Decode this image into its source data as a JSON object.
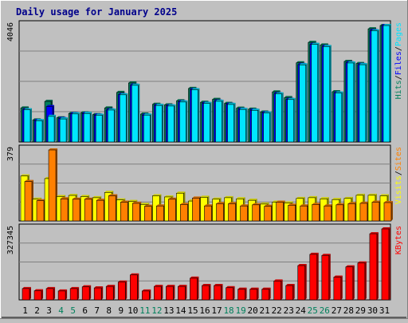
{
  "chart_data": {
    "type": "bar",
    "title": "Daily usage for January 2025",
    "categories": [
      "1",
      "2",
      "3",
      "4",
      "5",
      "6",
      "7",
      "8",
      "9",
      "10",
      "11",
      "12",
      "13",
      "14",
      "15",
      "16",
      "17",
      "18",
      "19",
      "20",
      "21",
      "22",
      "23",
      "24",
      "25",
      "26",
      "27",
      "28",
      "29",
      "30",
      "31"
    ],
    "weekend_days": [
      "4",
      "5",
      "11",
      "12",
      "18",
      "19",
      "25",
      "26"
    ],
    "panels": [
      {
        "id": "hits",
        "max_label": "4046",
        "ylim": [
          0,
          4046
        ],
        "axis_labels": [
          "Pages",
          "Files",
          "Hits"
        ],
        "series": [
          {
            "name": "Hits",
            "color": "#00805c",
            "values": [
              1180,
              765,
              1410,
              840,
              990,
              1010,
              950,
              1180,
              1720,
              2051,
              970,
              1310,
              1290,
              1430,
              1860,
              1380,
              1480,
              1340,
              1175,
              1140,
              1040,
              1740,
              1540,
              2750,
              3460,
              3370,
              1745,
              2800,
              2725,
              3930,
              4046
            ]
          },
          {
            "name": "Files",
            "color": "#0000ff",
            "values": [
              1120,
              745,
              1230,
              815,
              980,
              990,
              935,
              1115,
              1645,
              1975,
              935,
              1270,
              1255,
              1395,
              1820,
              1345,
              1420,
              1310,
              1135,
              1105,
              1010,
              1675,
              1480,
              2690,
              3390,
              3320,
              1700,
              2750,
              2690,
              3870,
              4046
            ]
          },
          {
            "name": "Pages",
            "color": "#00e5ff",
            "values": [
              1120,
              740,
              890,
              800,
              975,
              990,
              930,
              1110,
              1640,
              1970,
              935,
              1270,
              1250,
              1390,
              1815,
              1340,
              1415,
              1305,
              1130,
              1100,
              1005,
              1670,
              1475,
              2680,
              3390,
              3315,
              1700,
              2745,
              2685,
              3860,
              4046
            ]
          }
        ]
      },
      {
        "id": "visits",
        "max_label": "379",
        "ylim": [
          0,
          379
        ],
        "axis_labels": [
          "Sites",
          "Visits"
        ],
        "series": [
          {
            "name": "Visits",
            "color": "#ffff00",
            "values": [
              240,
              116,
              226,
              130,
              136,
              130,
              124,
              152,
              112,
              104,
              88,
              134,
              128,
              148,
              106,
              126,
              116,
              124,
              118,
              110,
              90,
              100,
              96,
              120,
              124,
              118,
              114,
              120,
              137,
              137,
              134
            ]
          },
          {
            "name": "Sites",
            "color": "#ff8000",
            "values": [
              210,
              108,
              379,
              118,
              116,
              116,
              110,
              134,
              100,
              94,
              78,
              80,
              116,
              88,
              122,
              80,
              92,
              92,
              80,
              86,
              78,
              100,
              84,
              80,
              88,
              80,
              86,
              92,
              94,
              100,
              98
            ]
          }
        ]
      },
      {
        "id": "kbytes",
        "max_label": "327345",
        "ylim": [
          0,
          327345
        ],
        "axis_labels": [
          "KBytes"
        ],
        "series": [
          {
            "name": "KBytes",
            "color": "#ff0000",
            "values": [
              52000,
              42000,
              52000,
              41000,
              52000,
              60000,
              55000,
              62000,
              82000,
              115000,
              41000,
              62000,
              62000,
              62000,
              100000,
              66000,
              66000,
              56000,
              49000,
              49000,
              49000,
              87000,
              66000,
              158000,
              210000,
              205000,
              105000,
              152000,
              170000,
              305000,
              327345
            ]
          }
        ]
      }
    ]
  }
}
